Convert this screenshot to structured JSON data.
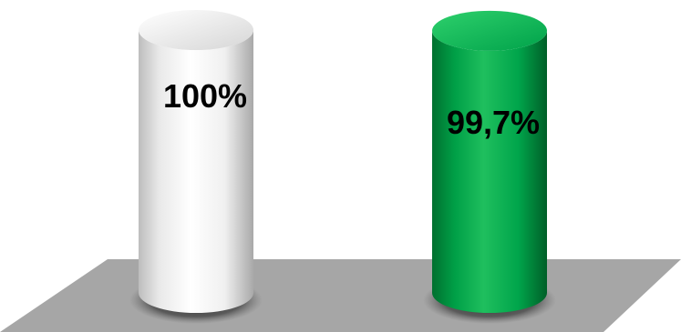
{
  "chart_data": {
    "type": "bar",
    "style": "3d-cylinder",
    "categories": [
      "",
      ""
    ],
    "values": [
      100,
      99.7
    ],
    "data_labels": [
      "100%",
      "99,7%"
    ],
    "ylim": [
      0,
      100
    ],
    "grid": false,
    "legend": "none",
    "colors": [
      "#f2f2f2",
      "#00a24a"
    ]
  },
  "colors": {
    "floor": "#a6a6a6",
    "floor_edge": "#8c8c8c",
    "shadow": "#3a3a3a"
  }
}
